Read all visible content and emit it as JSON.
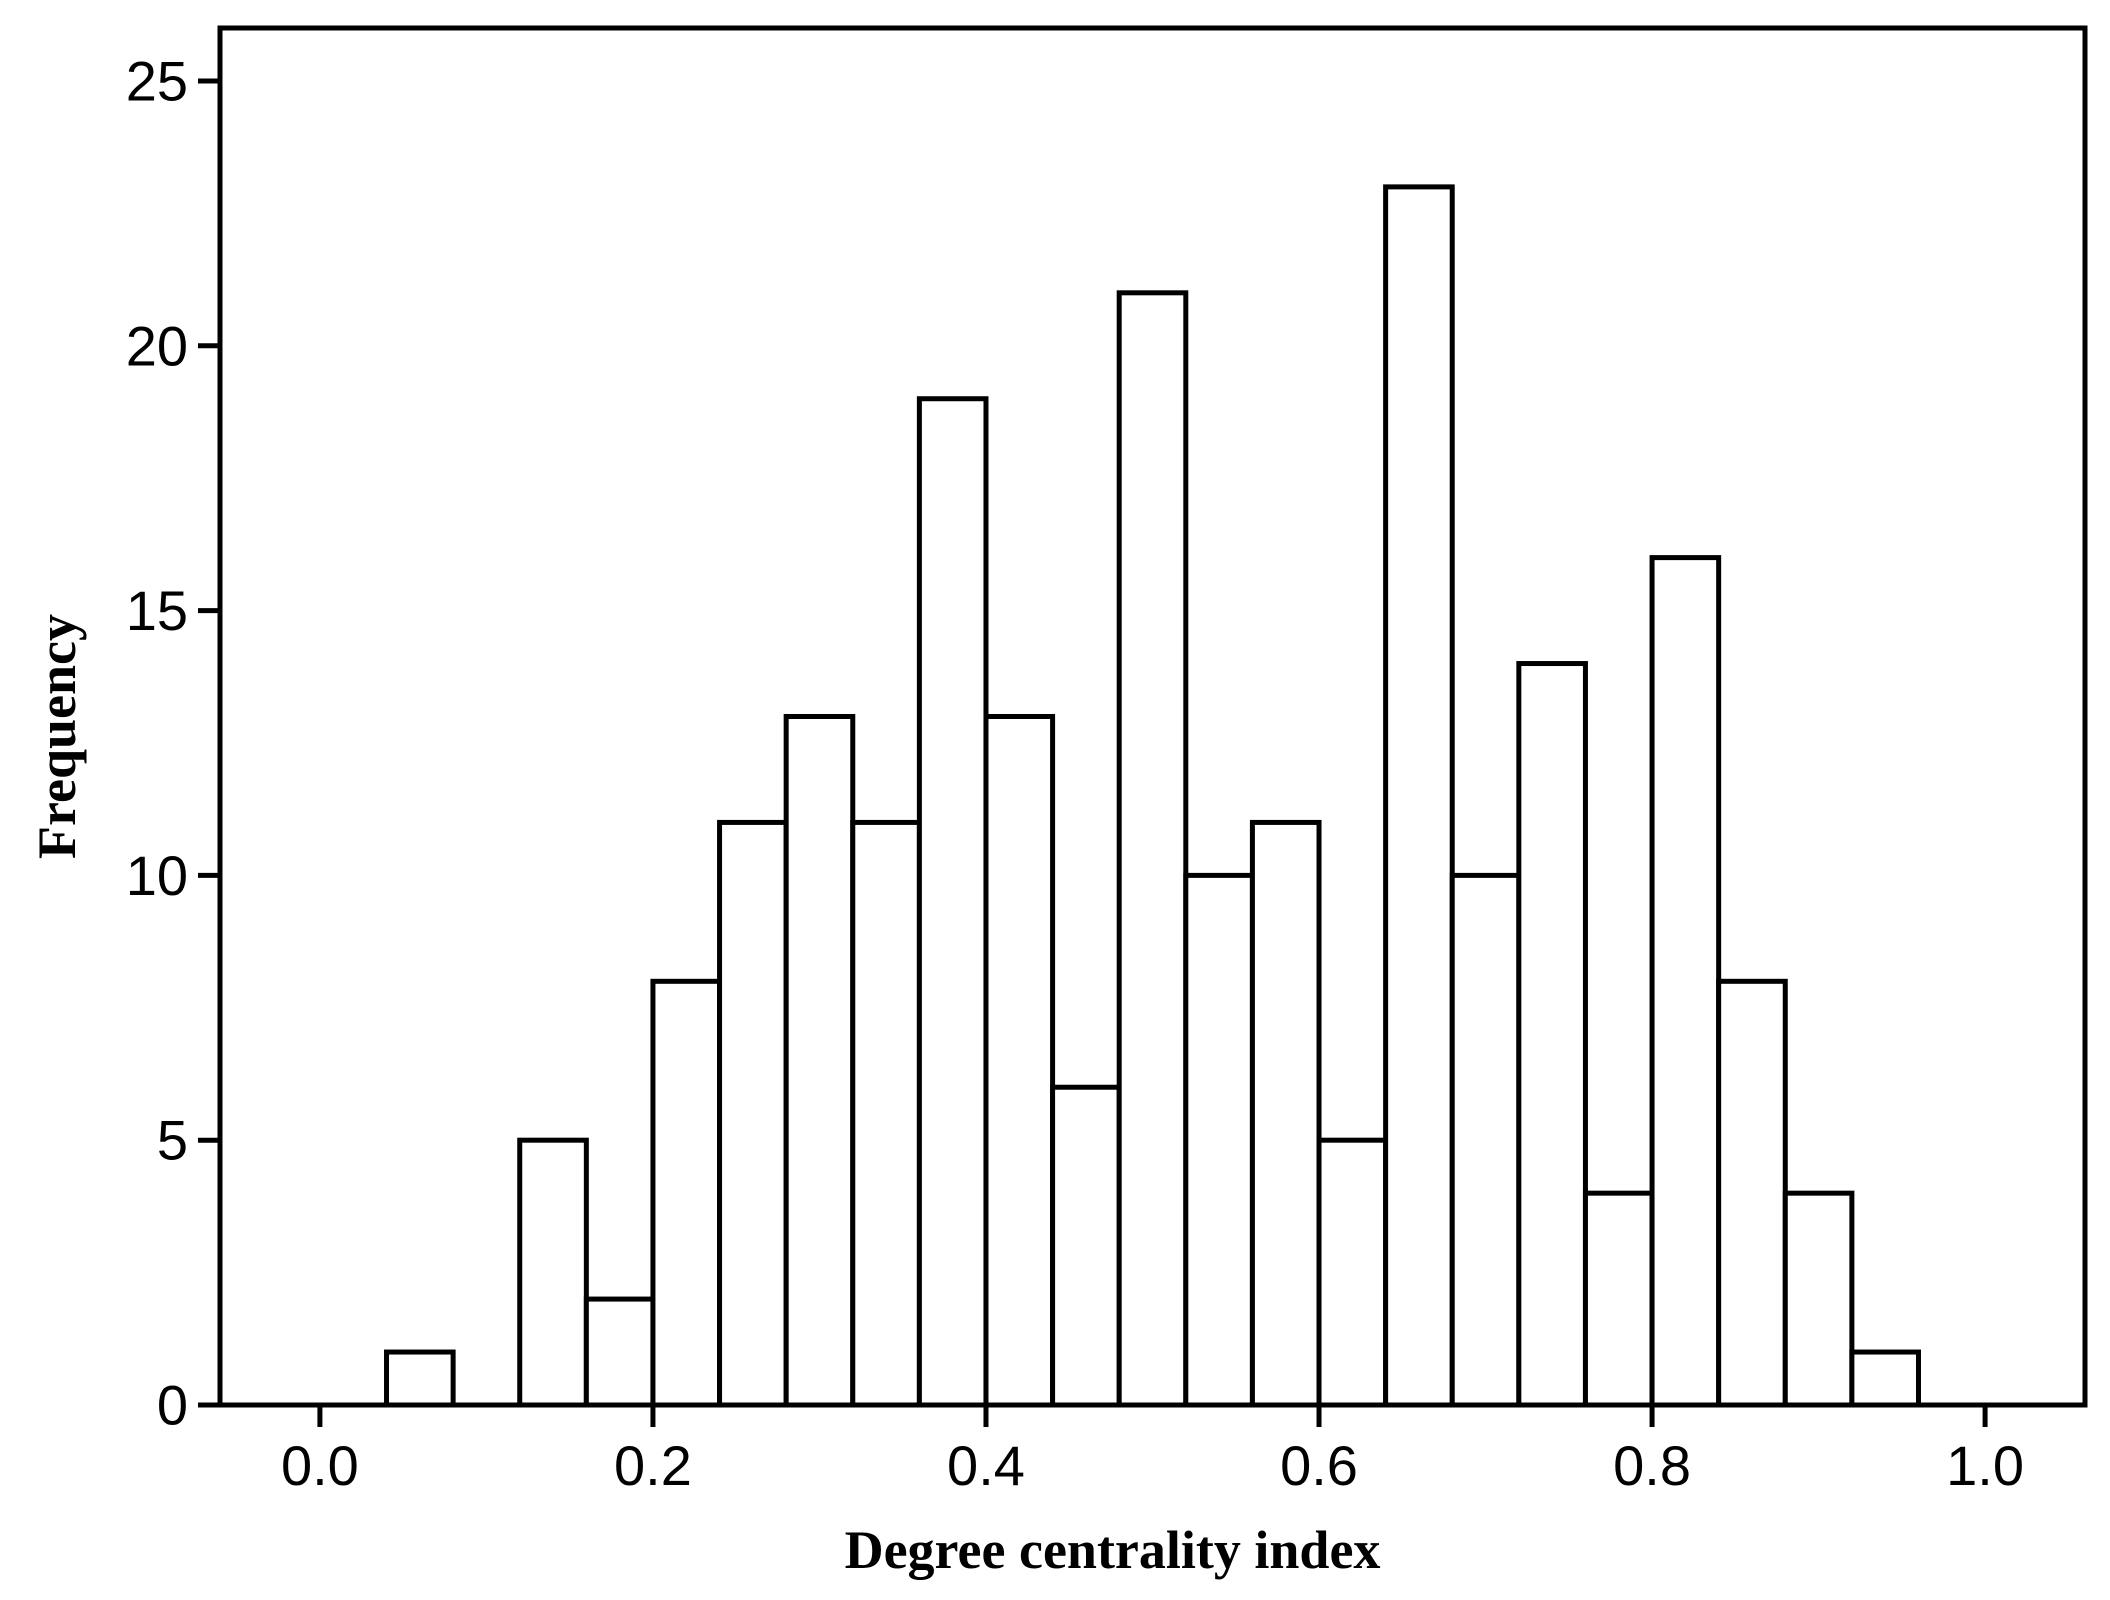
{
  "chart_data": {
    "type": "bar",
    "title": "",
    "xlabel": "Degree centrality index",
    "ylabel": "Frequency",
    "xlim": [
      -0.06,
      1.06
    ],
    "ylim": [
      0,
      26
    ],
    "bin_width": 0.04,
    "x_ticks": [
      "0.0",
      "0.2",
      "0.4",
      "0.6",
      "0.8",
      "1.0"
    ],
    "y_ticks": [
      "0",
      "5",
      "10",
      "15",
      "20",
      "25"
    ],
    "bins": [
      {
        "start": 0.04,
        "end": 0.08,
        "value": 1
      },
      {
        "start": 0.08,
        "end": 0.12,
        "value": 0
      },
      {
        "start": 0.12,
        "end": 0.16,
        "value": 5
      },
      {
        "start": 0.16,
        "end": 0.2,
        "value": 2
      },
      {
        "start": 0.2,
        "end": 0.24,
        "value": 8
      },
      {
        "start": 0.24,
        "end": 0.28,
        "value": 11
      },
      {
        "start": 0.28,
        "end": 0.32,
        "value": 13
      },
      {
        "start": 0.32,
        "end": 0.36,
        "value": 11
      },
      {
        "start": 0.36,
        "end": 0.4,
        "value": 19
      },
      {
        "start": 0.4,
        "end": 0.44,
        "value": 13
      },
      {
        "start": 0.44,
        "end": 0.48,
        "value": 6
      },
      {
        "start": 0.48,
        "end": 0.52,
        "value": 21
      },
      {
        "start": 0.52,
        "end": 0.56,
        "value": 10
      },
      {
        "start": 0.56,
        "end": 0.6,
        "value": 11
      },
      {
        "start": 0.6,
        "end": 0.64,
        "value": 5
      },
      {
        "start": 0.64,
        "end": 0.68,
        "value": 23
      },
      {
        "start": 0.68,
        "end": 0.72,
        "value": 10
      },
      {
        "start": 0.72,
        "end": 0.76,
        "value": 14
      },
      {
        "start": 0.76,
        "end": 0.8,
        "value": 4
      },
      {
        "start": 0.8,
        "end": 0.84,
        "value": 16
      },
      {
        "start": 0.84,
        "end": 0.88,
        "value": 8
      },
      {
        "start": 0.88,
        "end": 0.92,
        "value": 4
      },
      {
        "start": 0.92,
        "end": 0.96,
        "value": 1
      }
    ],
    "grid": false,
    "legend": "none",
    "bar_fill": "#ffffff",
    "bar_stroke": "#000000"
  }
}
